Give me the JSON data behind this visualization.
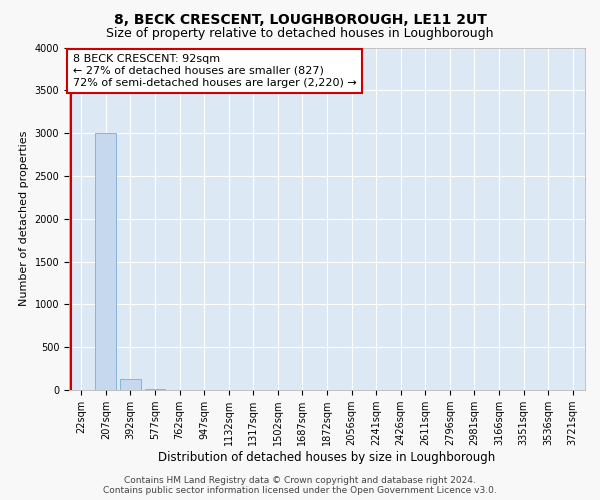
{
  "title": "8, BECK CRESCENT, LOUGHBOROUGH, LE11 2UT",
  "subtitle": "Size of property relative to detached houses in Loughborough",
  "xlabel": "Distribution of detached houses by size in Loughborough",
  "ylabel": "Number of detached properties",
  "footer_line1": "Contains HM Land Registry data © Crown copyright and database right 2024.",
  "footer_line2": "Contains public sector information licensed under the Open Government Licence v3.0.",
  "bar_labels": [
    "22sqm",
    "207sqm",
    "392sqm",
    "577sqm",
    "762sqm",
    "947sqm",
    "1132sqm",
    "1317sqm",
    "1502sqm",
    "1687sqm",
    "1872sqm",
    "2056sqm",
    "2241sqm",
    "2426sqm",
    "2611sqm",
    "2796sqm",
    "2981sqm",
    "3166sqm",
    "3351sqm",
    "3536sqm",
    "3721sqm"
  ],
  "bar_values": [
    5,
    3000,
    125,
    8,
    3,
    2,
    1,
    1,
    0,
    0,
    0,
    0,
    0,
    0,
    0,
    0,
    0,
    0,
    0,
    0,
    0
  ],
  "bar_color": "#c5d8ee",
  "bar_edge_color": "#7aadd4",
  "ylim": [
    0,
    4000
  ],
  "yticks": [
    0,
    500,
    1000,
    1500,
    2000,
    2500,
    3000,
    3500,
    4000
  ],
  "property_line_x": -0.42,
  "property_line_color": "#cc0000",
  "annotation_line1": "8 BECK CRESCENT: 92sqm",
  "annotation_line2": "← 27% of detached houses are smaller (827)",
  "annotation_line3": "72% of semi-detached houses are larger (2,220) →",
  "annotation_box_color": "#cc0000",
  "fig_bg_color": "#f8f8f8",
  "plot_bg_color": "#dde8f5",
  "grid_color": "#ffffff",
  "title_fontsize": 10,
  "subtitle_fontsize": 9,
  "annotation_fontsize": 8,
  "tick_fontsize": 7,
  "ylabel_fontsize": 8,
  "xlabel_fontsize": 8.5,
  "footer_fontsize": 6.5
}
